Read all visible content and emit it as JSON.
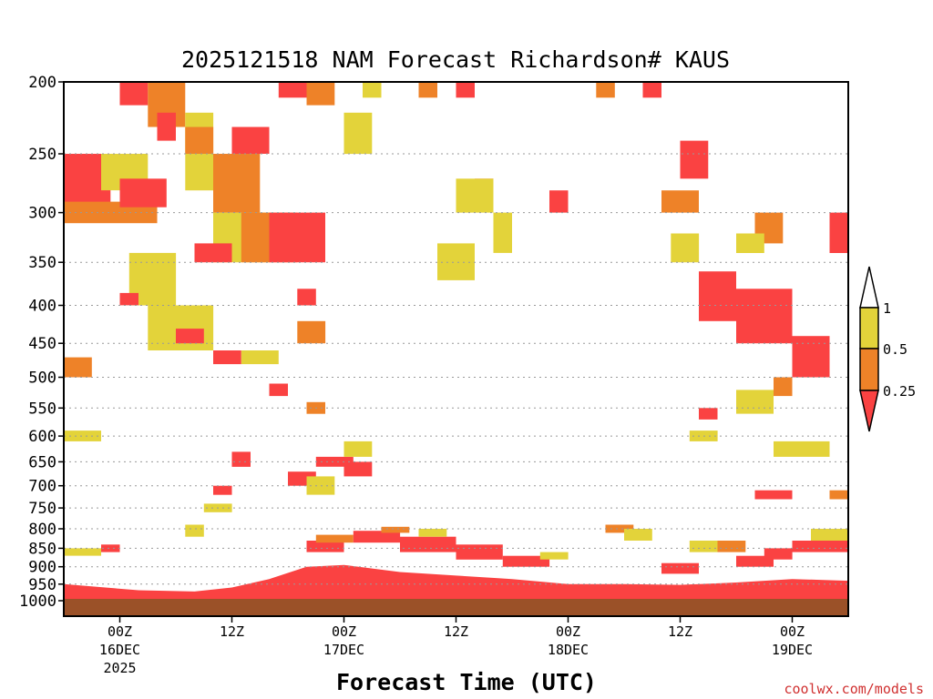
{
  "chart_data": {
    "type": "heatmap",
    "title": "2025121518 NAM Forecast Richardson# KAUS",
    "xlabel": "Forecast Time (UTC)",
    "ylabel": "",
    "ylim": [
      1000,
      200
    ],
    "y_ticks": [
      "200",
      "250",
      "300",
      "350",
      "400",
      "450",
      "500",
      "550",
      "600",
      "650",
      "700",
      "750",
      "800",
      "850",
      "900",
      "950",
      "1000"
    ],
    "x_ticks": [
      {
        "label": "00Z",
        "date": "16DEC",
        "year": "2025"
      },
      {
        "label": "12Z",
        "date": "",
        "year": ""
      },
      {
        "label": "00Z",
        "date": "17DEC",
        "year": ""
      },
      {
        "label": "12Z",
        "date": "",
        "year": ""
      },
      {
        "label": "00Z",
        "date": "18DEC",
        "year": ""
      },
      {
        "label": "12Z",
        "date": "",
        "year": ""
      },
      {
        "label": "00Z",
        "date": "19DEC",
        "year": ""
      }
    ],
    "x_range_hours": [
      -6,
      78
    ],
    "grid": "dotted horizontal at pressure levels",
    "legend": {
      "placement": "right",
      "levels": [
        "1",
        "0.5",
        "0.25"
      ],
      "colors": {
        "gt1": "#ffffff",
        "0.5-1": "#e3d33a",
        "0.25-0.5": "#ee8228",
        "lt0.25": "#fa4242"
      }
    },
    "colors": {
      "yellow": "#e3d33a",
      "orange": "#ee8228",
      "red": "#fa4242",
      "ground": "#9b5128"
    },
    "regions": [
      {
        "c": "r",
        "t": [
          -6,
          -1
        ],
        "p": [
          250,
          300
        ]
      },
      {
        "c": "o",
        "t": [
          -6,
          4
        ],
        "p": [
          290,
          310
        ]
      },
      {
        "c": "y",
        "t": [
          -2,
          3
        ],
        "p": [
          250,
          280
        ]
      },
      {
        "c": "r",
        "t": [
          0,
          5
        ],
        "p": [
          270,
          295
        ]
      },
      {
        "c": "y",
        "t": [
          1,
          6
        ],
        "p": [
          340,
          400
        ]
      },
      {
        "c": "r",
        "t": [
          0,
          2
        ],
        "p": [
          385,
          400
        ]
      },
      {
        "c": "o",
        "t": [
          -6,
          -3
        ],
        "p": [
          470,
          500
        ]
      },
      {
        "c": "y",
        "t": [
          -6,
          -2
        ],
        "p": [
          590,
          610
        ]
      },
      {
        "c": "r",
        "t": [
          0,
          3
        ],
        "p": [
          200,
          215
        ]
      },
      {
        "c": "o",
        "t": [
          3,
          7
        ],
        "p": [
          200,
          230
        ]
      },
      {
        "c": "r",
        "t": [
          4,
          6
        ],
        "p": [
          220,
          240
        ]
      },
      {
        "c": "y",
        "t": [
          7,
          10
        ],
        "p": [
          220,
          280
        ]
      },
      {
        "c": "o",
        "t": [
          7,
          10
        ],
        "p": [
          230,
          250
        ]
      },
      {
        "c": "o",
        "t": [
          10,
          15
        ],
        "p": [
          250,
          300
        ]
      },
      {
        "c": "r",
        "t": [
          12,
          16
        ],
        "p": [
          230,
          250
        ]
      },
      {
        "c": "y",
        "t": [
          10,
          16
        ],
        "p": [
          300,
          350
        ]
      },
      {
        "c": "o",
        "t": [
          13,
          19
        ],
        "p": [
          300,
          350
        ]
      },
      {
        "c": "r",
        "t": [
          16,
          22
        ],
        "p": [
          300,
          350
        ]
      },
      {
        "c": "r",
        "t": [
          8,
          12
        ],
        "p": [
          330,
          350
        ]
      },
      {
        "c": "y",
        "t": [
          3,
          10
        ],
        "p": [
          400,
          460
        ]
      },
      {
        "c": "r",
        "t": [
          6,
          9
        ],
        "p": [
          430,
          450
        ]
      },
      {
        "c": "r",
        "t": [
          10,
          13
        ],
        "p": [
          460,
          480
        ]
      },
      {
        "c": "y",
        "t": [
          13,
          17
        ],
        "p": [
          460,
          480
        ]
      },
      {
        "c": "r",
        "t": [
          19,
          21
        ],
        "p": [
          380,
          400
        ]
      },
      {
        "c": "o",
        "t": [
          19,
          22
        ],
        "p": [
          420,
          450
        ]
      },
      {
        "c": "r",
        "t": [
          16,
          18
        ],
        "p": [
          510,
          530
        ]
      },
      {
        "c": "o",
        "t": [
          20,
          22
        ],
        "p": [
          540,
          560
        ]
      },
      {
        "c": "r",
        "t": [
          17,
          20
        ],
        "p": [
          200,
          210
        ]
      },
      {
        "c": "o",
        "t": [
          20,
          23
        ],
        "p": [
          200,
          215
        ]
      },
      {
        "c": "y",
        "t": [
          26,
          28
        ],
        "p": [
          200,
          210
        ]
      },
      {
        "c": "o",
        "t": [
          32,
          34
        ],
        "p": [
          200,
          210
        ]
      },
      {
        "c": "r",
        "t": [
          36,
          38
        ],
        "p": [
          200,
          210
        ]
      },
      {
        "c": "y",
        "t": [
          24,
          27
        ],
        "p": [
          220,
          250
        ]
      },
      {
        "c": "r",
        "t": [
          38,
          40
        ],
        "p": [
          270,
          290
        ]
      },
      {
        "c": "y",
        "t": [
          36,
          40
        ],
        "p": [
          270,
          300
        ]
      },
      {
        "c": "y",
        "t": [
          40,
          42
        ],
        "p": [
          300,
          340
        ]
      },
      {
        "c": "y",
        "t": [
          34,
          38
        ],
        "p": [
          330,
          370
        ]
      },
      {
        "c": "r",
        "t": [
          46,
          48
        ],
        "p": [
          280,
          300
        ]
      },
      {
        "c": "o",
        "t": [
          51,
          53
        ],
        "p": [
          200,
          210
        ]
      },
      {
        "c": "r",
        "t": [
          56,
          58
        ],
        "p": [
          200,
          210
        ]
      },
      {
        "c": "o",
        "t": [
          58,
          62
        ],
        "p": [
          280,
          300
        ]
      },
      {
        "c": "r",
        "t": [
          60,
          63
        ],
        "p": [
          240,
          270
        ]
      },
      {
        "c": "y",
        "t": [
          59,
          62
        ],
        "p": [
          320,
          350
        ]
      },
      {
        "c": "r",
        "t": [
          62,
          66
        ],
        "p": [
          360,
          420
        ]
      },
      {
        "c": "r",
        "t": [
          66,
          72
        ],
        "p": [
          380,
          450
        ]
      },
      {
        "c": "r",
        "t": [
          72,
          76
        ],
        "p": [
          440,
          500
        ]
      },
      {
        "c": "o",
        "t": [
          68,
          71
        ],
        "p": [
          300,
          330
        ]
      },
      {
        "c": "y",
        "t": [
          66,
          69
        ],
        "p": [
          320,
          340
        ]
      },
      {
        "c": "r",
        "t": [
          76,
          78
        ],
        "p": [
          320,
          340
        ]
      },
      {
        "c": "r",
        "t": [
          76,
          78
        ],
        "p": [
          300,
          320
        ]
      },
      {
        "c": "y",
        "t": [
          66,
          70
        ],
        "p": [
          520,
          560
        ]
      },
      {
        "c": "o",
        "t": [
          70,
          72
        ],
        "p": [
          500,
          530
        ]
      },
      {
        "c": "y",
        "t": [
          70,
          76
        ],
        "p": [
          610,
          640
        ]
      },
      {
        "c": "r",
        "t": [
          68,
          72
        ],
        "p": [
          710,
          730
        ]
      },
      {
        "c": "y",
        "t": [
          61,
          64
        ],
        "p": [
          590,
          610
        ]
      },
      {
        "c": "r",
        "t": [
          62,
          64
        ],
        "p": [
          550,
          570
        ]
      },
      {
        "c": "r",
        "t": [
          12,
          14
        ],
        "p": [
          630,
          660
        ]
      },
      {
        "c": "r",
        "t": [
          10,
          12
        ],
        "p": [
          700,
          720
        ]
      },
      {
        "c": "y",
        "t": [
          9,
          12
        ],
        "p": [
          740,
          760
        ]
      },
      {
        "c": "r",
        "t": [
          21,
          25
        ],
        "p": [
          640,
          660
        ]
      },
      {
        "c": "y",
        "t": [
          24,
          27
        ],
        "p": [
          610,
          640
        ]
      },
      {
        "c": "r",
        "t": [
          24,
          27
        ],
        "p": [
          650,
          680
        ]
      },
      {
        "c": "r",
        "t": [
          18,
          21
        ],
        "p": [
          670,
          700
        ]
      },
      {
        "c": "y",
        "t": [
          20,
          23
        ],
        "p": [
          680,
          720
        ]
      },
      {
        "c": "o",
        "t": [
          52,
          55
        ],
        "p": [
          790,
          810
        ]
      },
      {
        "c": "y",
        "t": [
          54,
          57
        ],
        "p": [
          800,
          830
        ]
      },
      {
        "c": "y",
        "t": [
          61,
          64
        ],
        "p": [
          830,
          860
        ]
      },
      {
        "c": "o",
        "t": [
          64,
          67
        ],
        "p": [
          830,
          860
        ]
      },
      {
        "c": "r",
        "t": [
          69,
          72
        ],
        "p": [
          850,
          880
        ]
      },
      {
        "c": "r",
        "t": [
          72,
          78
        ],
        "p": [
          830,
          860
        ]
      },
      {
        "c": "y",
        "t": [
          74,
          78
        ],
        "p": [
          800,
          830
        ]
      },
      {
        "c": "o",
        "t": [
          76,
          78
        ],
        "p": [
          710,
          730
        ]
      },
      {
        "c": "y",
        "t": [
          7,
          9
        ],
        "p": [
          790,
          820
        ]
      },
      {
        "c": "r",
        "t": [
          -2,
          0
        ],
        "p": [
          840,
          860
        ]
      },
      {
        "c": "y",
        "t": [
          -6,
          -2
        ],
        "p": [
          850,
          870
        ]
      },
      {
        "c": "r",
        "t": [
          20,
          24
        ],
        "p": [
          830,
          860
        ]
      },
      {
        "c": "o",
        "t": [
          21,
          25
        ],
        "p": [
          815,
          835
        ]
      },
      {
        "c": "r",
        "t": [
          25,
          30
        ],
        "p": [
          805,
          835
        ]
      },
      {
        "c": "o",
        "t": [
          28,
          31
        ],
        "p": [
          795,
          810
        ]
      },
      {
        "c": "r",
        "t": [
          30,
          36
        ],
        "p": [
          820,
          860
        ]
      },
      {
        "c": "y",
        "t": [
          32,
          35
        ],
        "p": [
          800,
          820
        ]
      },
      {
        "c": "r",
        "t": [
          36,
          41
        ],
        "p": [
          840,
          880
        ]
      },
      {
        "c": "r",
        "t": [
          41,
          46
        ],
        "p": [
          870,
          900
        ]
      },
      {
        "c": "y",
        "t": [
          45,
          48
        ],
        "p": [
          860,
          880
        ]
      },
      {
        "c": "r",
        "t": [
          58,
          62
        ],
        "p": [
          890,
          920
        ]
      },
      {
        "c": "r",
        "t": [
          66,
          70
        ],
        "p": [
          870,
          900
        ]
      }
    ],
    "boundary_layer_top": [
      [
        -6,
        950
      ],
      [
        2,
        968
      ],
      [
        8,
        972
      ],
      [
        12,
        960
      ],
      [
        16,
        935
      ],
      [
        20,
        900
      ],
      [
        24,
        895
      ],
      [
        30,
        915
      ],
      [
        36,
        925
      ],
      [
        42,
        935
      ],
      [
        48,
        950
      ],
      [
        54,
        950
      ],
      [
        60,
        952
      ],
      [
        66,
        945
      ],
      [
        72,
        935
      ],
      [
        78,
        940
      ]
    ],
    "credit": "coolwx.com/models"
  }
}
